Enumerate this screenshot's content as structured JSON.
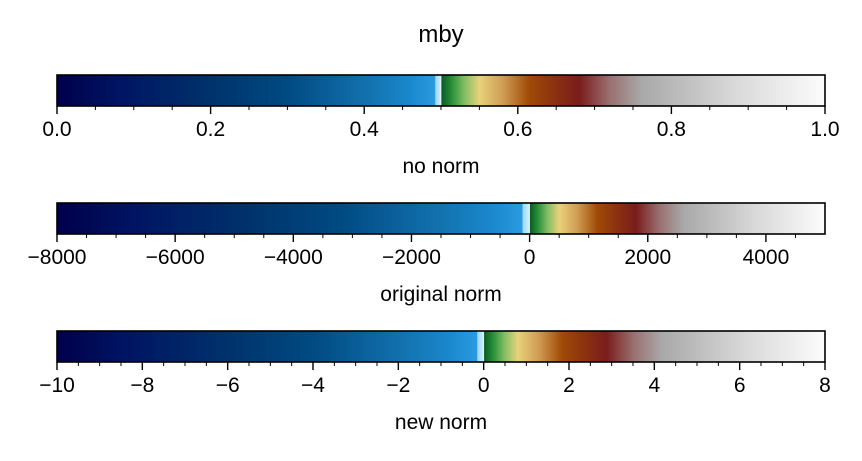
{
  "figure": {
    "title": "mby"
  },
  "colormap": {
    "name": "mby",
    "stops": [
      {
        "t": 0.0,
        "color": "#00004a"
      },
      {
        "t": 0.08,
        "color": "#001463"
      },
      {
        "t": 0.2,
        "color": "#00326a"
      },
      {
        "t": 0.3,
        "color": "#004a82"
      },
      {
        "t": 0.4,
        "color": "#1270ac"
      },
      {
        "t": 0.46,
        "color": "#1a88cc"
      },
      {
        "t": 0.492,
        "color": "#2a9be0"
      },
      {
        "t": 0.493,
        "color": "#9fd8f7"
      },
      {
        "t": 0.499,
        "color": "#c8ecff"
      },
      {
        "t": 0.5,
        "color": "#ffffff"
      },
      {
        "t": 0.501,
        "color": "#0e5a22"
      },
      {
        "t": 0.512,
        "color": "#1f8a35"
      },
      {
        "t": 0.53,
        "color": "#7fbd62"
      },
      {
        "t": 0.55,
        "color": "#e8d27a"
      },
      {
        "t": 0.58,
        "color": "#d09e55"
      },
      {
        "t": 0.615,
        "color": "#a04a06"
      },
      {
        "t": 0.65,
        "color": "#8a3010"
      },
      {
        "t": 0.68,
        "color": "#7a1c1c"
      },
      {
        "t": 0.72,
        "color": "#9a7070"
      },
      {
        "t": 0.76,
        "color": "#a8a8a8"
      },
      {
        "t": 0.88,
        "color": "#d8d8d8"
      },
      {
        "t": 1.0,
        "color": "#fcfcfc"
      }
    ]
  },
  "chart_data": [
    {
      "type": "colorbar",
      "xlabel": "no norm",
      "xlim": [
        0.0,
        1.0
      ],
      "center": 0.5,
      "major_ticks": [
        0.0,
        0.2,
        0.4,
        0.6,
        0.8,
        1.0
      ],
      "tick_labels": [
        "0.0",
        "0.2",
        "0.4",
        "0.6",
        "0.8",
        "1.0"
      ],
      "minor_ticks": [
        0.05,
        0.1,
        0.15,
        0.25,
        0.3,
        0.35,
        0.45,
        0.5,
        0.55,
        0.65,
        0.7,
        0.75,
        0.85,
        0.9,
        0.95
      ]
    },
    {
      "type": "colorbar",
      "xlabel": "original norm",
      "xlim": [
        -8000,
        5000
      ],
      "center": 0,
      "major_ticks": [
        -8000,
        -6000,
        -4000,
        -2000,
        0,
        2000,
        4000
      ],
      "tick_labels": [
        "−8000",
        "−6000",
        "−4000",
        "−2000",
        "0",
        "2000",
        "4000"
      ],
      "minor_ticks": [
        -7500,
        -7000,
        -6500,
        -5500,
        -5000,
        -4500,
        -3500,
        -3000,
        -2500,
        -1500,
        -1000,
        -500,
        500,
        1000,
        1500,
        2500,
        3000,
        3500,
        4500
      ]
    },
    {
      "type": "colorbar",
      "xlabel": "new norm",
      "xlim": [
        -10,
        8
      ],
      "center": 0,
      "major_ticks": [
        -10,
        -8,
        -6,
        -4,
        -2,
        0,
        2,
        4,
        6,
        8
      ],
      "tick_labels": [
        "−10",
        "−8",
        "−6",
        "−4",
        "−2",
        "0",
        "2",
        "4",
        "6",
        "8"
      ],
      "minor_ticks": [
        -9.5,
        -9,
        -8.5,
        -7.5,
        -7,
        -6.5,
        -5.5,
        -5,
        -4.5,
        -3.5,
        -3,
        -2.5,
        -1.5,
        -1,
        -0.5,
        0.5,
        1,
        1.5,
        2.5,
        3,
        3.5,
        4.5,
        5,
        5.5,
        6.5,
        7,
        7.5
      ]
    }
  ]
}
